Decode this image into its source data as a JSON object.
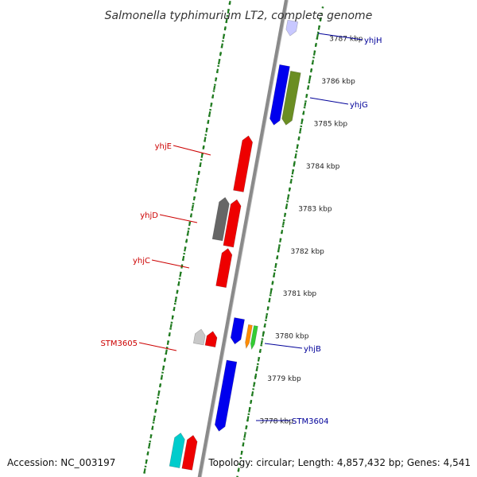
{
  "title": "Salmonella typhimurium LT2, complete genome",
  "accession": "Accession: NC_003197",
  "topology": "Topology: circular; Length: 4,857,432 bp; Genes: 4,541",
  "colors": {
    "backbone": "#8a8a8a",
    "ruler": "#1f7a1f",
    "reverse_label": "#cc0000",
    "forward_label": "#000099"
  },
  "ticks": [
    {
      "kbp": 3787,
      "label": "3787 kbp"
    },
    {
      "kbp": 3786,
      "label": "3786 kbp"
    },
    {
      "kbp": 3785,
      "label": "3785 kbp"
    },
    {
      "kbp": 3784,
      "label": "3784 kbp"
    },
    {
      "kbp": 3783,
      "label": "3783 kbp"
    },
    {
      "kbp": 3782,
      "label": "3782 kbp"
    },
    {
      "kbp": 3781,
      "label": "3781 kbp"
    },
    {
      "kbp": 3780,
      "label": "3780 kbp"
    },
    {
      "kbp": 3779,
      "label": "3779 kbp"
    },
    {
      "kbp": 3778,
      "label": "3778 kbp"
    }
  ],
  "genes": [
    {
      "name": "yhjH",
      "strand": "forward",
      "color": "#c8c8ff",
      "start": 3786.9,
      "end": 3787.25
    },
    {
      "name": "",
      "strand": "forward",
      "color": "#0000ee",
      "start": 3784.8,
      "end": 3786.2
    },
    {
      "name": "yhjG",
      "strand": "forward",
      "color": "#6b8e23",
      "start": 3784.85,
      "end": 3786.1
    },
    {
      "name": "yhjE",
      "strand": "reverse",
      "color": "#ee0000",
      "start": 3783.15,
      "end": 3784.45
    },
    {
      "name": "",
      "strand": "reverse",
      "color": "#666666",
      "start": 3781.95,
      "end": 3782.95
    },
    {
      "name": "yhjD",
      "strand": "reverse",
      "color": "#ee0000",
      "start": 3781.85,
      "end": 3782.95
    },
    {
      "name": "yhjC",
      "strand": "reverse",
      "color": "#ee0000",
      "start": 3780.9,
      "end": 3781.8
    },
    {
      "name": "",
      "strand": "forward",
      "color": "#0000ee",
      "start": 3779.65,
      "end": 3780.25
    },
    {
      "name": "yhjB",
      "strand": "forward",
      "color": "#ff8c00",
      "start": 3779.6,
      "end": 3780.15
    },
    {
      "name": "",
      "strand": "forward",
      "color": "#33cc33",
      "start": 3779.6,
      "end": 3780.15
    },
    {
      "name": "STM3605",
      "strand": "reverse",
      "color": "#c8c8c8",
      "start": 3779.5,
      "end": 3779.85
    },
    {
      "name": "",
      "strand": "reverse",
      "color": "#ee0000",
      "start": 3779.5,
      "end": 3779.85
    },
    {
      "name": "STM3604",
      "strand": "forward",
      "color": "#0000ee",
      "start": 3777.6,
      "end": 3779.25
    },
    {
      "name": "",
      "strand": "reverse",
      "color": "#00cccc",
      "start": 3776.6,
      "end": 3777.4
    },
    {
      "name": "",
      "strand": "reverse",
      "color": "#ee0000",
      "start": 3776.6,
      "end": 3777.4
    }
  ],
  "gene_labels": [
    {
      "text": "yhjH",
      "strand": "forward"
    },
    {
      "text": "yhjG",
      "strand": "forward"
    },
    {
      "text": "yhjE",
      "strand": "reverse"
    },
    {
      "text": "yhjD",
      "strand": "reverse"
    },
    {
      "text": "yhjC",
      "strand": "reverse"
    },
    {
      "text": "yhjB",
      "strand": "forward"
    },
    {
      "text": "STM3605",
      "strand": "reverse"
    },
    {
      "text": "STM3604",
      "strand": "forward"
    }
  ]
}
